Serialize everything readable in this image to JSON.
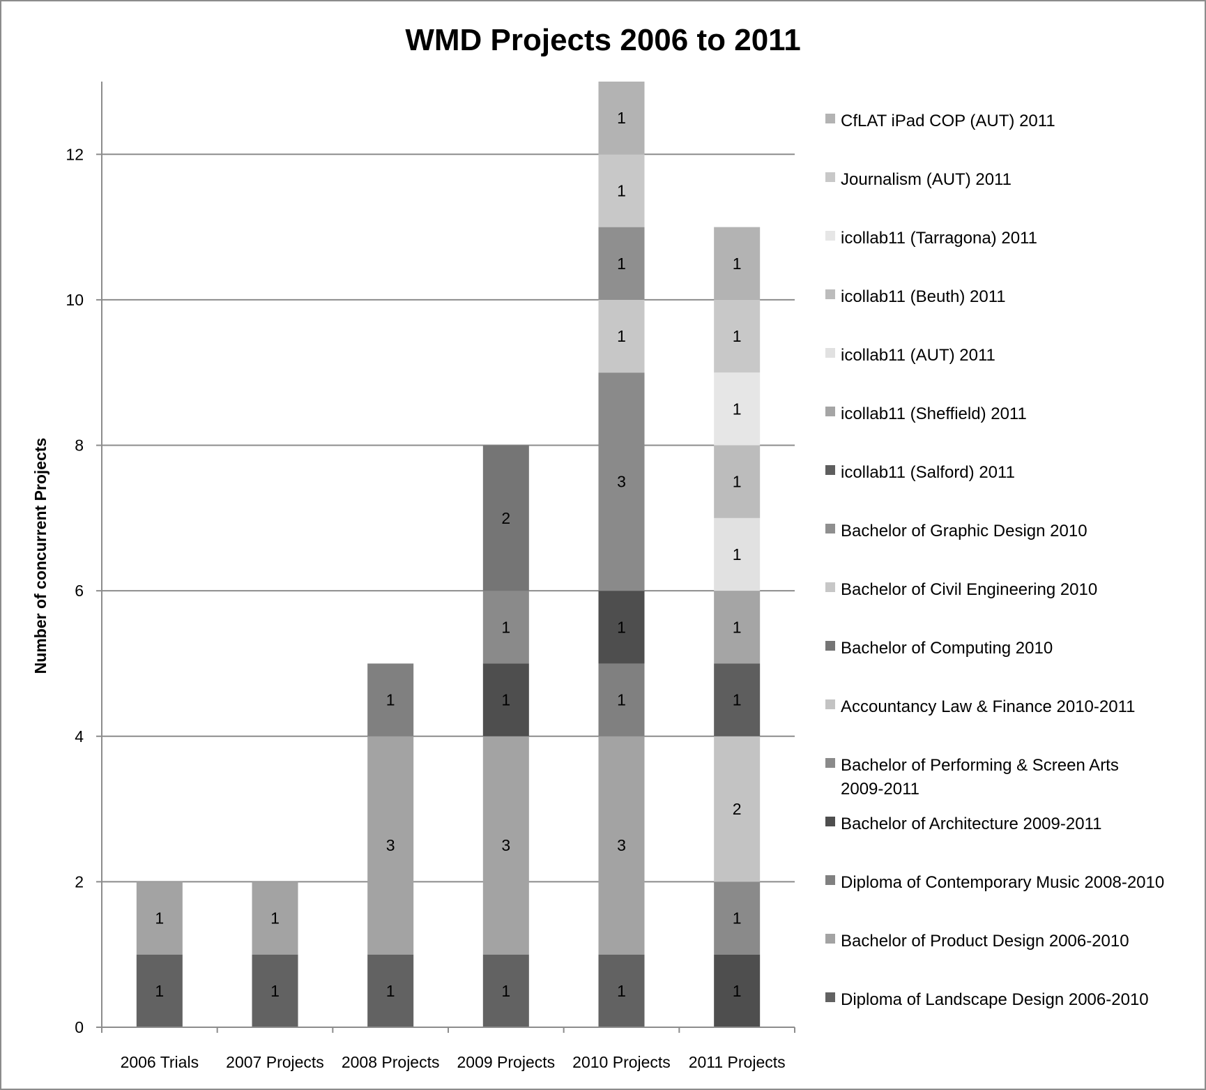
{
  "chart_data": {
    "type": "bar",
    "stacked": true,
    "title": "WMD Projects 2006 to 2011",
    "xlabel": "",
    "ylabel": "Number of concurrent Projects",
    "ylim": [
      0,
      13
    ],
    "yticks": [
      0,
      2,
      4,
      6,
      8,
      10,
      12
    ],
    "grid": true,
    "legend_position": "right",
    "categories": [
      "2006 Trials",
      "2007 Projects",
      "2008 Projects",
      "2009 Projects",
      "2010 Projects",
      "2011 Projects"
    ],
    "series": [
      {
        "name": "Diploma of Landscape Design 2006-2010",
        "color": "#626262",
        "values": [
          1,
          1,
          1,
          1,
          1,
          0
        ]
      },
      {
        "name": "Bachelor of Product Design 2006-2010",
        "color": "#a3a3a3",
        "values": [
          1,
          1,
          3,
          3,
          3,
          0
        ]
      },
      {
        "name": "Diploma of Contemporary Music 2008-2010",
        "color": "#808080",
        "values": [
          0,
          0,
          1,
          0,
          1,
          0
        ]
      },
      {
        "name": "Bachelor of Architecture 2009-2011",
        "color": "#4e4e4e",
        "values": [
          0,
          0,
          0,
          1,
          1,
          1
        ]
      },
      {
        "name": "Bachelor of Performing & Screen Arts 2009-2011",
        "color": "#8a8a8a",
        "values": [
          0,
          0,
          0,
          1,
          3,
          1
        ]
      },
      {
        "name": "Accountancy Law & Finance 2010-2011",
        "color": "#c3c3c3",
        "values": [
          0,
          0,
          0,
          0,
          0,
          2
        ]
      },
      {
        "name": "Bachelor of Computing 2010",
        "color": "#757575",
        "values": [
          0,
          0,
          0,
          2,
          0,
          0
        ]
      },
      {
        "name": "Bachelor of Civil Engineering 2010",
        "color": "#c7c7c7",
        "values": [
          0,
          0,
          0,
          0,
          1,
          0
        ]
      },
      {
        "name": "Bachelor of Graphic Design 2010",
        "color": "#8f8f8f",
        "values": [
          0,
          0,
          0,
          0,
          1,
          0
        ]
      },
      {
        "name": "icollab11 (Salford) 2011",
        "color": "#5e5e5e",
        "values": [
          0,
          0,
          0,
          0,
          0,
          1
        ]
      },
      {
        "name": "icollab11 (Sheffield) 2011",
        "color": "#a5a5a5",
        "values": [
          0,
          0,
          0,
          0,
          0,
          1
        ]
      },
      {
        "name": "icollab11 (AUT) 2011",
        "color": "#e1e1e1",
        "values": [
          0,
          0,
          0,
          0,
          0,
          1
        ]
      },
      {
        "name": "icollab11 (Beuth) 2011",
        "color": "#bcbcbc",
        "values": [
          0,
          0,
          0,
          0,
          0,
          1
        ]
      },
      {
        "name": "icollab11 (Tarragona) 2011",
        "color": "#e6e6e6",
        "values": [
          0,
          0,
          0,
          0,
          0,
          1
        ]
      },
      {
        "name": "Journalism (AUT) 2011",
        "color": "#c8c8c8",
        "values": [
          0,
          0,
          0,
          0,
          1,
          1
        ]
      },
      {
        "name": "CfLAT iPad COP (AUT) 2011",
        "color": "#b3b3b3",
        "values": [
          0,
          0,
          0,
          0,
          1,
          1
        ]
      }
    ],
    "legend_lines": [
      [
        "CfLAT iPad COP (AUT) 2011"
      ],
      [
        "Journalism (AUT) 2011"
      ],
      [
        "icollab11 (Tarragona) 2011"
      ],
      [
        "icollab11 (Beuth) 2011"
      ],
      [
        "icollab11 (AUT) 2011"
      ],
      [
        "icollab11 (Sheffield) 2011"
      ],
      [
        "icollab11 (Salford) 2011"
      ],
      [
        "Bachelor of Graphic Design 2010"
      ],
      [
        "Bachelor of Civil Engineering 2010"
      ],
      [
        "Bachelor of Computing 2010"
      ],
      [
        "Accountancy Law & Finance 2010-2011"
      ],
      [
        "Bachelor of Performing & Screen Arts",
        "2009-2011"
      ],
      [
        "Bachelor of Architecture 2009-2011"
      ],
      [
        "Diploma of Contemporary Music 2008-2010"
      ],
      [
        "Bachelor of Product Design 2006-2010"
      ],
      [
        "Diploma of Landscape Design 2006-2010"
      ]
    ],
    "colors": {
      "gridline": "#8c8c8c",
      "axis": "#8c8c8c",
      "frame": "#8c8c8c"
    }
  }
}
